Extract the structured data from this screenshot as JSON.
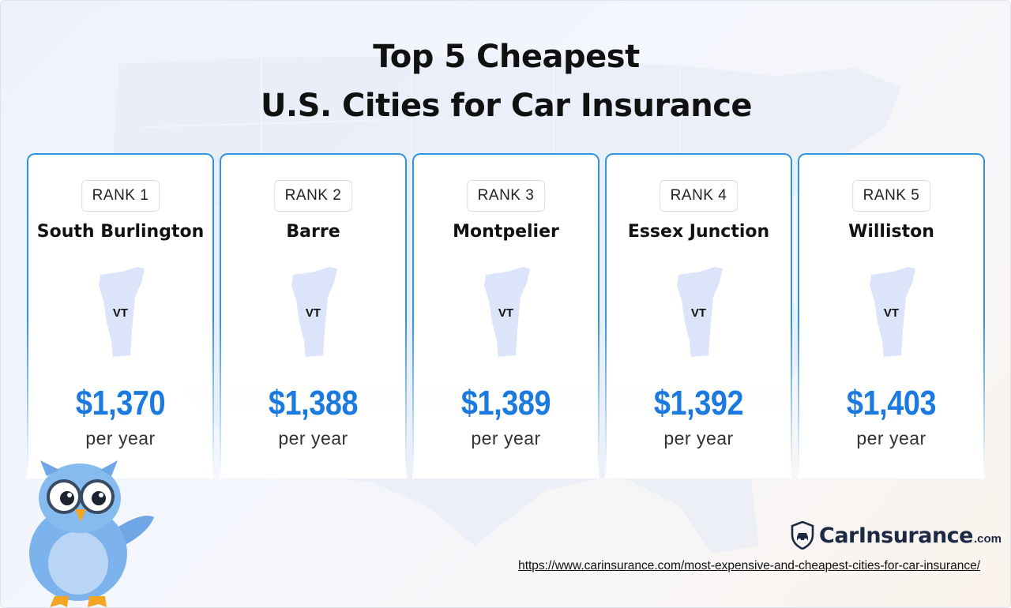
{
  "title_line1": "Top 5 Cheapest",
  "title_line2": "U.S. Cities for Car Insurance",
  "cities": [
    {
      "rank": "RANK 1",
      "city": "South Burlington",
      "state": "VT",
      "price": "$1,370",
      "period": "per year"
    },
    {
      "rank": "RANK 2",
      "city": "Barre",
      "state": "VT",
      "price": "$1,388",
      "period": "per year"
    },
    {
      "rank": "RANK 3",
      "city": "Montpelier",
      "state": "VT",
      "price": "$1,389",
      "period": "per year"
    },
    {
      "rank": "RANK 4",
      "city": "Essex Junction",
      "state": "VT",
      "price": "$1,392",
      "period": "per year"
    },
    {
      "rank": "RANK 5",
      "city": "Williston",
      "state": "VT",
      "price": "$1,403",
      "period": "per year"
    }
  ],
  "brand": {
    "name": "CarInsurance",
    "tld": ".com",
    "icon": "shield-car-icon"
  },
  "source_url": "https://www.carinsurance.com/most-expensive-and-cheapest-cities-for-car-insurance/",
  "colors": {
    "accent": "#1a7ae0",
    "card_border": "#2f95e0",
    "state_fill": "#dbe4f8",
    "brand": "#1d2a44"
  }
}
